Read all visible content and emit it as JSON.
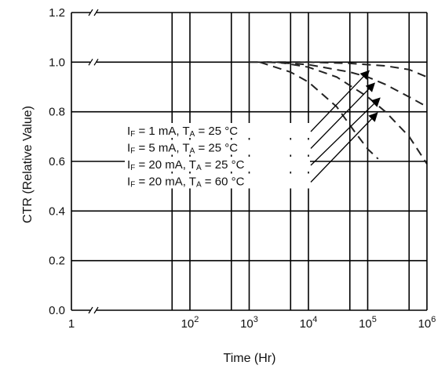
{
  "chart_data": {
    "type": "line",
    "xlabel": "Time (Hr)",
    "ylabel": "CTR (Relative Value)",
    "xscale": "log",
    "xlim": [
      1,
      1000000
    ],
    "ylim": [
      0.0,
      1.2
    ],
    "grid": true,
    "x_ticks": [
      {
        "value": 1,
        "base": "1",
        "exp": ""
      },
      {
        "value": 100,
        "base": "10",
        "exp": "2"
      },
      {
        "value": 1000,
        "base": "10",
        "exp": "3"
      },
      {
        "value": 10000,
        "base": "10",
        "exp": "4"
      },
      {
        "value": 100000,
        "base": "10",
        "exp": "5"
      },
      {
        "value": 1000000,
        "base": "10",
        "exp": "6"
      }
    ],
    "y_ticks": [
      {
        "value": 0.0,
        "label": "0.0"
      },
      {
        "value": 0.2,
        "label": "0.2"
      },
      {
        "value": 0.4,
        "label": "0.4"
      },
      {
        "value": 0.6,
        "label": "0.6"
      },
      {
        "value": 0.8,
        "label": "0.8"
      },
      {
        "value": 1.0,
        "label": "1.0"
      },
      {
        "value": 1.2,
        "label": "1.2"
      }
    ],
    "x_gridlines": [
      50,
      100,
      500,
      1000,
      5000,
      10000,
      50000,
      100000,
      500000
    ],
    "line_style": "dashed",
    "series": [
      {
        "name": "IF = 1 mA, TA = 25 °C",
        "label_parts": {
          "if_sub": "F",
          "if_val": " = 1 mA,  ",
          "ta_sub": "A",
          "ta_val": " = 25 °C"
        },
        "x": [
          1000,
          5000,
          10000,
          50000,
          100000,
          200000,
          500000,
          1000000
        ],
        "y": [
          1.0,
          1.0,
          1.0,
          0.995,
          0.99,
          0.985,
          0.97,
          0.94
        ]
      },
      {
        "name": "IF = 5 mA, TA = 25 °C",
        "label_parts": {
          "if_sub": "F",
          "if_val": " = 5 mA,  ",
          "ta_sub": "A",
          "ta_val": " = 25 °C"
        },
        "x": [
          2000,
          5000,
          10000,
          50000,
          100000,
          200000,
          500000,
          1000000
        ],
        "y": [
          1.0,
          0.995,
          0.99,
          0.96,
          0.94,
          0.91,
          0.86,
          0.82
        ]
      },
      {
        "name": "IF = 20 mA, TA = 25 °C",
        "label_parts": {
          "if_sub": "F",
          "if_val": " = 20 mA, ",
          "ta_sub": "A",
          "ta_val": " = 25 °C"
        },
        "x": [
          3000,
          10000,
          30000,
          100000,
          200000,
          500000,
          1000000
        ],
        "y": [
          1.0,
          0.98,
          0.94,
          0.86,
          0.8,
          0.7,
          0.59
        ]
      },
      {
        "name": "IF = 20 mA, TA = 60 °C",
        "label_parts": {
          "if_sub": "F",
          "if_val": " = 20 mA, ",
          "ta_sub": "A",
          "ta_val": " = 60 °C"
        },
        "x": [
          1500,
          5000,
          10000,
          30000,
          60000,
          100000,
          150000
        ],
        "y": [
          1.0,
          0.96,
          0.92,
          0.82,
          0.72,
          0.65,
          0.61
        ]
      }
    ]
  }
}
